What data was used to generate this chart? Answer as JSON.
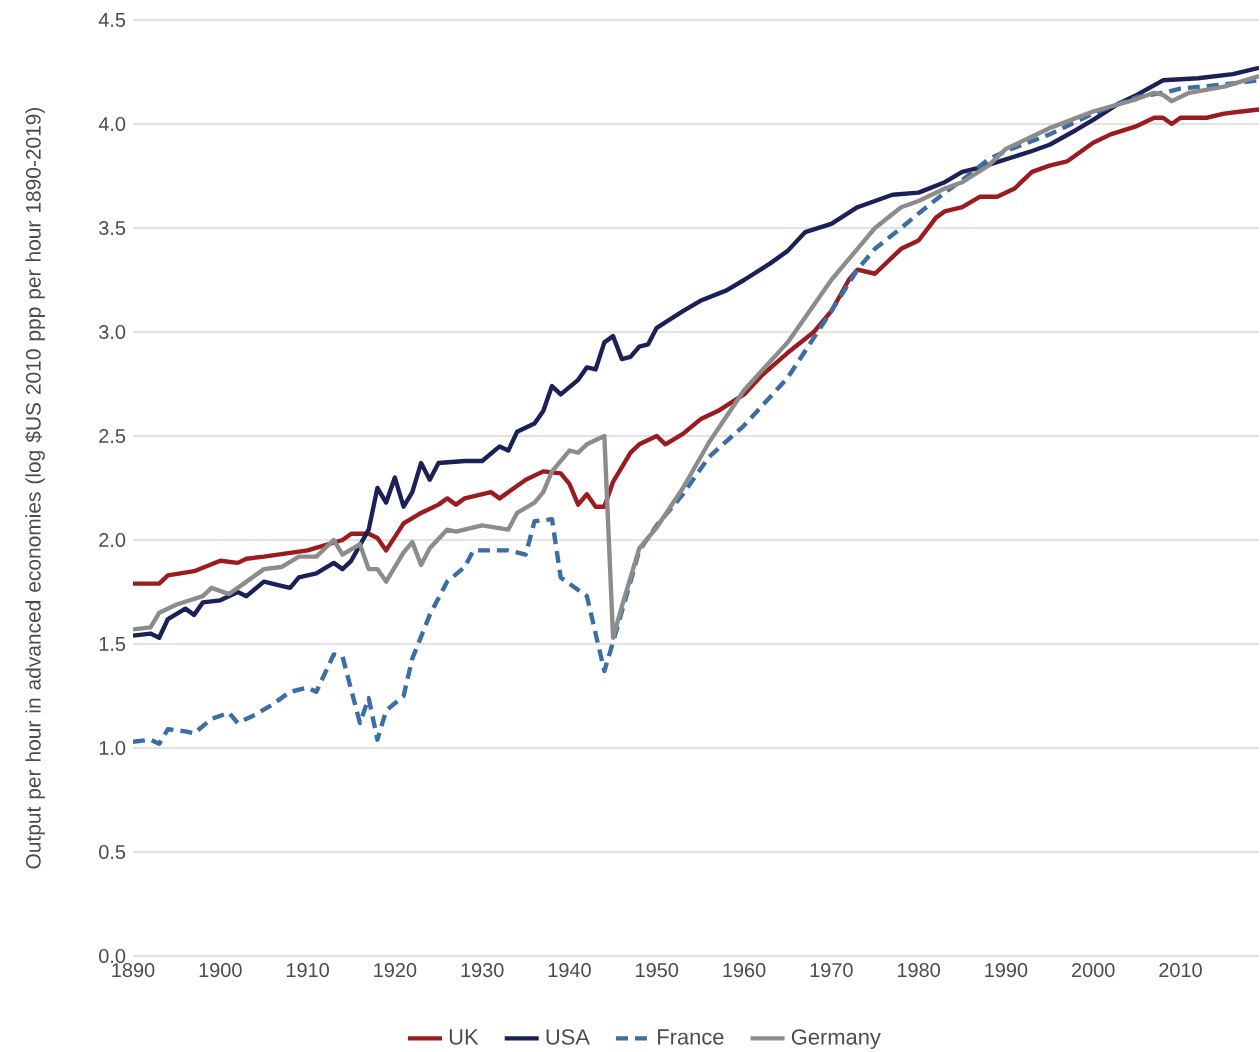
{
  "chart_data": {
    "type": "line",
    "ylabel": "Output per hour in advanced economies (log $US 2010 ppp per hour 1890-2019)",
    "xlim": [
      1890,
      2019
    ],
    "xticks": [
      1890,
      1900,
      1910,
      1920,
      1930,
      1940,
      1950,
      1960,
      1970,
      1980,
      1990,
      2000,
      2010
    ],
    "ylim": [
      0,
      4.5
    ],
    "yticks": [
      {
        "value": 0,
        "label": "0.0"
      },
      {
        "value": 0.5,
        "label": "0.5"
      },
      {
        "value": 1,
        "label": "1.0"
      },
      {
        "value": 1.5,
        "label": "1.5"
      },
      {
        "value": 2,
        "label": "2.0"
      },
      {
        "value": 2.5,
        "label": "2.5"
      },
      {
        "value": 3,
        "label": "3.0"
      },
      {
        "value": 3.5,
        "label": "3.5"
      },
      {
        "value": 4,
        "label": "4.0"
      },
      {
        "value": 4.5,
        "label": "4.5"
      }
    ],
    "grid": "y",
    "legend": "bottom",
    "marker": "none",
    "series": [
      {
        "name": "UK",
        "color": "#9b1b1f",
        "line_style": "solid",
        "x": [
          1890,
          1893,
          1894,
          1897,
          1900,
          1902,
          1903,
          1905,
          1910,
          1914,
          1915,
          1917,
          1918,
          1919,
          1921,
          1923,
          1925,
          1926,
          1927,
          1928,
          1931,
          1932,
          1935,
          1937,
          1939,
          1940,
          1941,
          1942,
          1943,
          1944,
          1945,
          1947,
          1948,
          1950,
          1951,
          1953,
          1955,
          1957,
          1960,
          1962,
          1965,
          1968,
          1970,
          1972,
          1973,
          1975,
          1978,
          1980,
          1982,
          1983,
          1985,
          1987,
          1989,
          1991,
          1993,
          1995,
          1997,
          2000,
          2002,
          2005,
          2007,
          2008,
          2009,
          2010,
          2013,
          2015,
          2017,
          2019
        ],
        "values": [
          1.79,
          1.79,
          1.83,
          1.85,
          1.9,
          1.89,
          1.91,
          1.92,
          1.95,
          2.0,
          2.03,
          2.03,
          2.01,
          1.95,
          2.08,
          2.13,
          2.17,
          2.2,
          2.17,
          2.2,
          2.23,
          2.2,
          2.29,
          2.33,
          2.32,
          2.27,
          2.17,
          2.22,
          2.16,
          2.16,
          2.28,
          2.42,
          2.46,
          2.5,
          2.46,
          2.51,
          2.58,
          2.62,
          2.7,
          2.79,
          2.9,
          3.0,
          3.1,
          3.25,
          3.3,
          3.28,
          3.4,
          3.44,
          3.55,
          3.58,
          3.6,
          3.65,
          3.65,
          3.69,
          3.77,
          3.8,
          3.82,
          3.91,
          3.95,
          3.99,
          4.03,
          4.03,
          4.0,
          4.03,
          4.03,
          4.05,
          4.06,
          4.07
        ]
      },
      {
        "name": "USA",
        "color": "#1b2157",
        "line_style": "solid",
        "x": [
          1890,
          1892,
          1893,
          1894,
          1896,
          1897,
          1898,
          1900,
          1902,
          1903,
          1905,
          1907,
          1908,
          1909,
          1911,
          1913,
          1914,
          1915,
          1917,
          1918,
          1919,
          1920,
          1921,
          1922,
          1923,
          1924,
          1925,
          1928,
          1930,
          1932,
          1933,
          1934,
          1936,
          1937,
          1938,
          1939,
          1941,
          1942,
          1943,
          1944,
          1945,
          1946,
          1947,
          1948,
          1949,
          1950,
          1953,
          1955,
          1958,
          1960,
          1963,
          1965,
          1967,
          1970,
          1973,
          1975,
          1977,
          1980,
          1983,
          1985,
          1987,
          1990,
          1993,
          1995,
          1998,
          2000,
          2003,
          2005,
          2008,
          2012,
          2016,
          2019
        ],
        "values": [
          1.54,
          1.55,
          1.53,
          1.62,
          1.67,
          1.64,
          1.7,
          1.71,
          1.75,
          1.73,
          1.8,
          1.78,
          1.77,
          1.82,
          1.84,
          1.89,
          1.86,
          1.9,
          2.05,
          2.25,
          2.18,
          2.3,
          2.16,
          2.23,
          2.37,
          2.29,
          2.37,
          2.38,
          2.38,
          2.45,
          2.43,
          2.52,
          2.56,
          2.62,
          2.74,
          2.7,
          2.77,
          2.83,
          2.82,
          2.95,
          2.98,
          2.87,
          2.88,
          2.93,
          2.94,
          3.02,
          3.1,
          3.15,
          3.2,
          3.25,
          3.33,
          3.39,
          3.48,
          3.52,
          3.6,
          3.63,
          3.66,
          3.67,
          3.72,
          3.77,
          3.79,
          3.83,
          3.87,
          3.9,
          3.97,
          4.02,
          4.1,
          4.14,
          4.21,
          4.22,
          4.24,
          4.27
        ]
      },
      {
        "name": "France",
        "color": "#3a6ea5",
        "line_style": "dashed",
        "x": [
          1890,
          1892,
          1893,
          1894,
          1896,
          1897,
          1899,
          1901,
          1902,
          1904,
          1906,
          1908,
          1910,
          1911,
          1913,
          1914,
          1916,
          1917,
          1918,
          1919,
          1921,
          1922,
          1924,
          1926,
          1928,
          1929,
          1933,
          1935,
          1936,
          1938,
          1939,
          1941,
          1942,
          1944,
          1945,
          1947,
          1948,
          1950,
          1953,
          1956,
          1960,
          1965,
          1970,
          1973,
          1975,
          1978,
          1980,
          1983,
          1985,
          1988,
          1990,
          1995,
          2000,
          2005,
          2008,
          2010,
          2015,
          2019
        ],
        "values": [
          1.03,
          1.04,
          1.02,
          1.09,
          1.08,
          1.07,
          1.14,
          1.17,
          1.12,
          1.16,
          1.21,
          1.27,
          1.29,
          1.27,
          1.45,
          1.44,
          1.12,
          1.24,
          1.04,
          1.18,
          1.25,
          1.43,
          1.64,
          1.8,
          1.87,
          1.95,
          1.95,
          1.93,
          2.09,
          2.1,
          1.82,
          1.76,
          1.73,
          1.37,
          1.51,
          1.8,
          1.95,
          2.07,
          2.22,
          2.4,
          2.55,
          2.78,
          3.1,
          3.3,
          3.4,
          3.5,
          3.57,
          3.67,
          3.73,
          3.83,
          3.87,
          3.95,
          4.05,
          4.13,
          4.15,
          4.17,
          4.19,
          4.21
        ]
      },
      {
        "name": "Germany",
        "color": "#8c8c8c",
        "line_style": "solid",
        "x": [
          1890,
          1892,
          1893,
          1895,
          1898,
          1899,
          1901,
          1903,
          1905,
          1907,
          1909,
          1911,
          1913,
          1914,
          1916,
          1917,
          1918,
          1919,
          1921,
          1922,
          1923,
          1924,
          1926,
          1927,
          1930,
          1933,
          1934,
          1936,
          1937,
          1938,
          1940,
          1941,
          1942,
          1944,
          1945,
          1946,
          1948,
          1950,
          1953,
          1956,
          1960,
          1965,
          1970,
          1973,
          1975,
          1978,
          1980,
          1983,
          1985,
          1988,
          1990,
          1995,
          2000,
          2005,
          2007,
          2008,
          2009,
          2011,
          2015,
          2019
        ],
        "values": [
          1.57,
          1.58,
          1.65,
          1.69,
          1.73,
          1.77,
          1.74,
          1.8,
          1.86,
          1.87,
          1.92,
          1.92,
          2.0,
          1.93,
          1.98,
          1.86,
          1.86,
          1.8,
          1.94,
          1.99,
          1.88,
          1.96,
          2.05,
          2.04,
          2.07,
          2.05,
          2.13,
          2.18,
          2.23,
          2.33,
          2.43,
          2.42,
          2.46,
          2.5,
          1.53,
          1.68,
          1.96,
          2.06,
          2.25,
          2.47,
          2.72,
          2.95,
          3.25,
          3.4,
          3.5,
          3.6,
          3.63,
          3.69,
          3.72,
          3.8,
          3.88,
          3.98,
          4.06,
          4.12,
          4.15,
          4.14,
          4.11,
          4.15,
          4.18,
          4.23
        ]
      }
    ]
  }
}
